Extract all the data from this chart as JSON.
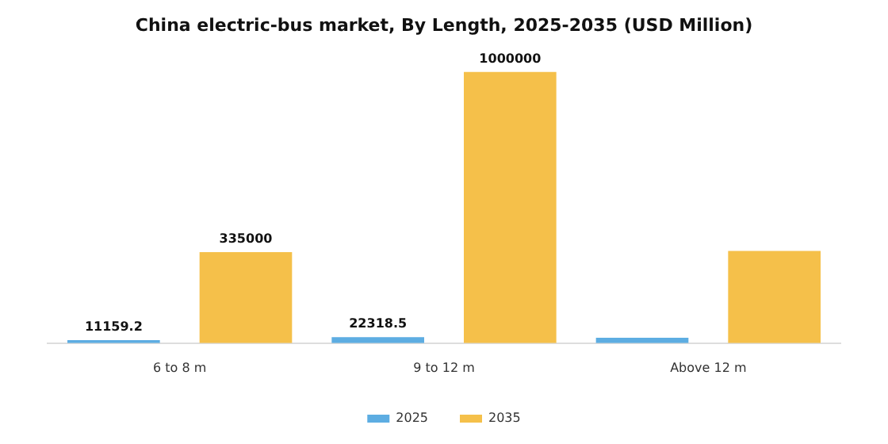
{
  "chart_data": {
    "type": "bar",
    "title": "China electric-bus market, By Length, 2025-2035 (USD Million)",
    "categories": [
      "6 to 8 m",
      "9 to 12 m",
      "Above 12 m"
    ],
    "series": [
      {
        "name": "2025",
        "color": "#5dade2",
        "values": [
          11159.2,
          22318.5,
          20000
        ],
        "value_labels": [
          "11159.2",
          "22318.5",
          null
        ]
      },
      {
        "name": "2035",
        "color": "#f5c04a",
        "values": [
          335000,
          1000000,
          340000
        ],
        "value_labels": [
          "335000",
          "1000000",
          null
        ]
      }
    ],
    "legend": "bottom",
    "grid": false,
    "tick_labels": "x"
  }
}
